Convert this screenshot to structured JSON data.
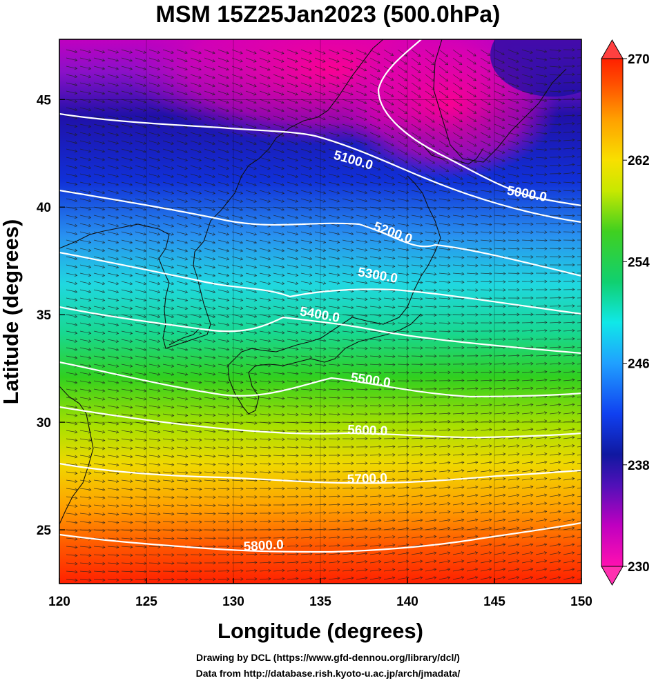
{
  "title": "MSM 15Z25Jan2023 (500.0hPa)",
  "map": {
    "xlabel": "Longitude (degrees)",
    "ylabel": "Latitude  (degrees)",
    "lon_range": [
      120,
      150
    ],
    "lat_range": [
      22.5,
      47.8
    ],
    "x_ticks": [
      "120",
      "125",
      "130",
      "135",
      "140",
      "145",
      "150"
    ],
    "y_ticks": [
      "25",
      "30",
      "35",
      "40",
      "45"
    ],
    "contours": [
      {
        "label": "5000.0"
      },
      {
        "label": "5100.0"
      },
      {
        "label": "5200.0"
      },
      {
        "label": "5300.0"
      },
      {
        "label": "5400.0"
      },
      {
        "label": "5500.0"
      },
      {
        "label": "5600.0"
      },
      {
        "label": "5700.0"
      },
      {
        "label": "5800.0"
      }
    ]
  },
  "colorbar": {
    "min": 230,
    "max": 270,
    "labels": [
      "270",
      "262",
      "254",
      "246",
      "238",
      "230"
    ],
    "colors": [
      "#ff0090",
      "#c000c0",
      "#6a10c8",
      "#1018a0",
      "#1030e0",
      "#2090ff",
      "#10e0e0",
      "#10d080",
      "#30d020",
      "#b0e000",
      "#f0e000",
      "#ffa000",
      "#ff5000",
      "#ff2000"
    ]
  },
  "credits": {
    "drawing": "Drawing by DCL (https://www.gfd-dennou.org/library/dcl/)",
    "data": "Data from http://database.rish.kyoto-u.ac.jp/arch/jmadata/"
  }
}
